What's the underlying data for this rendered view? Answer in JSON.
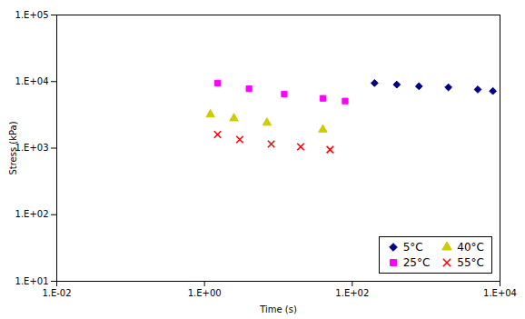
{
  "chart_data": {
    "type": "scatter",
    "xlabel": "Time (s)",
    "ylabel": "Stress (kPa)",
    "log": true,
    "xlim": [
      0.01,
      10000
    ],
    "ylim": [
      10,
      100000
    ],
    "xticks": [
      {
        "value": 0.01,
        "label": "1.E-02"
      },
      {
        "value": 1,
        "label": "1.E+00"
      },
      {
        "value": 100,
        "label": "1.E+02"
      },
      {
        "value": 10000,
        "label": "1.E+04"
      }
    ],
    "yticks": [
      {
        "value": 10,
        "label": "1.E+01"
      },
      {
        "value": 100,
        "label": "1.E+02"
      },
      {
        "value": 1000,
        "label": "1.E+03"
      },
      {
        "value": 10000,
        "label": "1.E+04"
      },
      {
        "value": 100000,
        "label": "1.E+05"
      }
    ],
    "grid": false,
    "legend": "lower right",
    "series": [
      {
        "name": "5°C",
        "color": "#00008B",
        "marker": "diamond",
        "x": [
          200,
          400,
          800,
          2000,
          5000,
          8000
        ],
        "values": [
          9500,
          9000,
          8500,
          8200,
          7600,
          7200
        ]
      },
      {
        "name": "25°C",
        "color": "#FF00FF",
        "marker": "square",
        "x": [
          1.5,
          4,
          12,
          40,
          80
        ],
        "values": [
          9500,
          7800,
          6500,
          5600,
          5100
        ]
      },
      {
        "name": "40°C",
        "color": "#CCCC00",
        "marker": "triangle",
        "x": [
          1.2,
          2.5,
          7,
          40
        ],
        "values": [
          3200,
          2800,
          2400,
          1900
        ]
      },
      {
        "name": "55°C",
        "color": "#FF0000",
        "marker": "x",
        "x": [
          1.5,
          3,
          8,
          20,
          50
        ],
        "values": [
          1600,
          1350,
          1150,
          1050,
          950
        ]
      }
    ]
  }
}
